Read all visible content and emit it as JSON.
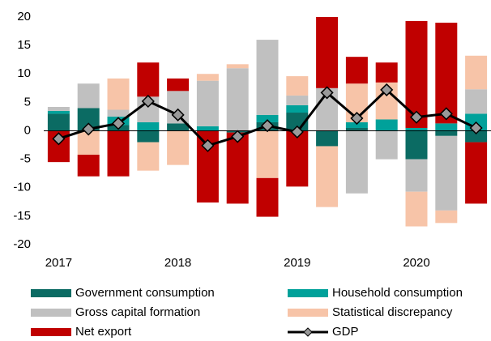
{
  "chart_data": {
    "type": "bar",
    "stacked": true,
    "categories": [
      "2017",
      null,
      null,
      null,
      "2018",
      null,
      null,
      null,
      "2019",
      null,
      null,
      null,
      "2020",
      null,
      null
    ],
    "series": [
      {
        "name": "Government consumption",
        "color": "#0b6b63",
        "values": [
          3.0,
          4.0,
          1.0,
          -2.0,
          1.3,
          0,
          -0.3,
          1.5,
          3.2,
          -2.7,
          0.5,
          0,
          -5.0,
          -0.9,
          -2.0
        ]
      },
      {
        "name": "Household consumption",
        "color": "#00a19a",
        "values": [
          0.5,
          0,
          1.5,
          1.5,
          0,
          0.8,
          0,
          1.3,
          1.3,
          0,
          1.0,
          2.0,
          0.5,
          1.3,
          3.0
        ]
      },
      {
        "name": "Gross capital formation",
        "color": "#c0c0c0",
        "values": [
          0.7,
          4.3,
          1.2,
          4.5,
          5.7,
          8.0,
          11.0,
          13.2,
          1.7,
          7.5,
          -11.0,
          -5.0,
          -5.7,
          -13.1,
          4.3
        ]
      },
      {
        "name": "Statistical discrepancy",
        "color": "#f7c4a8",
        "values": [
          0,
          -4.2,
          5.5,
          -5.0,
          -6.0,
          1.2,
          0.7,
          -8.3,
          3.4,
          -10.7,
          6.8,
          6.5,
          -6.1,
          -2.2,
          5.9
        ]
      },
      {
        "name": "Net export",
        "color": "#c00000",
        "values": [
          -5.5,
          -3.8,
          -8.0,
          6.0,
          2.2,
          -12.6,
          -12.5,
          -6.8,
          -9.8,
          12.5,
          4.7,
          3.5,
          18.8,
          17.7,
          -10.8
        ]
      },
      {
        "name": "GDP",
        "type": "line",
        "color": "#000000",
        "marker_color": "#999999",
        "values": [
          -1.4,
          0.3,
          1.3,
          5.2,
          2.8,
          -2.6,
          -1.0,
          0.9,
          -0.2,
          6.7,
          2.2,
          7.2,
          2.4,
          3.0,
          0.5
        ]
      }
    ],
    "ylim": [
      -20,
      20
    ],
    "yticks": [
      -20,
      -15,
      -10,
      -5,
      0,
      5,
      10,
      15,
      20
    ],
    "grid": false,
    "legend": "bottom"
  }
}
